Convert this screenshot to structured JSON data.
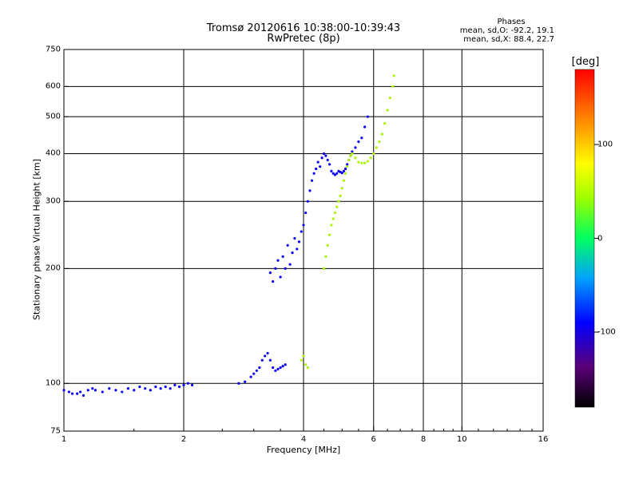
{
  "chart_data": {
    "type": "scatter",
    "title": "Tromsø 20120616 10:38:00-10:39:43",
    "subtitle": "RwPretec (8p)",
    "xlabel": "Frequency [MHz]",
    "ylabel": "Stationary phase Virtual Height [km]",
    "x_scale": "log",
    "y_scale": "log",
    "xlim": [
      1,
      16
    ],
    "ylim": [
      75,
      750
    ],
    "x_ticks": [
      1,
      2,
      4,
      6,
      8,
      10,
      16
    ],
    "y_ticks": [
      75,
      100,
      200,
      300,
      400,
      500,
      600,
      750
    ],
    "x_gridlines": [
      2,
      4,
      6,
      8,
      10
    ],
    "y_gridlines": [
      100,
      200,
      300,
      400,
      500,
      600
    ],
    "phases_box": {
      "heading": "Phases",
      "o_stats": "mean, sd,O: -92.2, 19.1",
      "x_stats": "mean, sd,X:  88.4, 22.7"
    },
    "colorbar": {
      "label": "[deg]",
      "range": [
        -180,
        180
      ],
      "ticks": [
        100,
        0,
        -100
      ]
    },
    "series": [
      {
        "name": "O-mode trace (blue, phase ~ -90 deg)",
        "phase_deg": -95,
        "points": [
          [
            1.0,
            96
          ],
          [
            1.03,
            95
          ],
          [
            1.05,
            94
          ],
          [
            1.08,
            94
          ],
          [
            1.1,
            95
          ],
          [
            1.12,
            93
          ],
          [
            1.15,
            96
          ],
          [
            1.18,
            97
          ],
          [
            1.2,
            96
          ],
          [
            1.25,
            95
          ],
          [
            1.3,
            97
          ],
          [
            1.35,
            96
          ],
          [
            1.4,
            95
          ],
          [
            1.45,
            97
          ],
          [
            1.5,
            96
          ],
          [
            1.55,
            98
          ],
          [
            1.6,
            97
          ],
          [
            1.65,
            96
          ],
          [
            1.7,
            98
          ],
          [
            1.75,
            97
          ],
          [
            1.8,
            98
          ],
          [
            1.85,
            97
          ],
          [
            1.9,
            99
          ],
          [
            1.95,
            98
          ],
          [
            2.0,
            99
          ],
          [
            2.05,
            100
          ],
          [
            2.1,
            99
          ],
          [
            2.75,
            100
          ],
          [
            2.85,
            101
          ],
          [
            2.95,
            104
          ],
          [
            3.0,
            106
          ],
          [
            3.05,
            108
          ],
          [
            3.1,
            110
          ],
          [
            3.15,
            115
          ],
          [
            3.2,
            118
          ],
          [
            3.25,
            120
          ],
          [
            3.3,
            115
          ],
          [
            3.35,
            110
          ],
          [
            3.4,
            108
          ],
          [
            3.45,
            109
          ],
          [
            3.5,
            110
          ],
          [
            3.55,
            111
          ],
          [
            3.6,
            112
          ],
          [
            3.3,
            195
          ],
          [
            3.35,
            185
          ],
          [
            3.4,
            200
          ],
          [
            3.45,
            210
          ],
          [
            3.5,
            190
          ],
          [
            3.55,
            215
          ],
          [
            3.6,
            200
          ],
          [
            3.65,
            230
          ],
          [
            3.7,
            205
          ],
          [
            3.75,
            220
          ],
          [
            3.8,
            240
          ],
          [
            3.85,
            225
          ],
          [
            3.9,
            235
          ],
          [
            3.95,
            250
          ],
          [
            4.0,
            260
          ],
          [
            4.05,
            280
          ],
          [
            4.1,
            300
          ],
          [
            4.15,
            320
          ],
          [
            4.2,
            340
          ],
          [
            4.25,
            355
          ],
          [
            4.3,
            365
          ],
          [
            4.35,
            380
          ],
          [
            4.4,
            370
          ],
          [
            4.45,
            390
          ],
          [
            4.5,
            400
          ],
          [
            4.55,
            395
          ],
          [
            4.6,
            385
          ],
          [
            4.65,
            375
          ],
          [
            4.7,
            360
          ],
          [
            4.75,
            355
          ],
          [
            4.8,
            352
          ],
          [
            4.85,
            355
          ],
          [
            4.9,
            360
          ],
          [
            4.95,
            358
          ],
          [
            5.0,
            356
          ],
          [
            5.05,
            360
          ],
          [
            5.1,
            365
          ],
          [
            5.15,
            375
          ],
          [
            5.2,
            385
          ],
          [
            5.25,
            395
          ],
          [
            5.3,
            405
          ],
          [
            5.4,
            415
          ],
          [
            5.5,
            430
          ],
          [
            5.6,
            440
          ],
          [
            5.7,
            470
          ],
          [
            5.8,
            500
          ]
        ]
      },
      {
        "name": "X-mode trace (yellow, phase ~ +90 deg)",
        "phase_deg": 92,
        "points": [
          [
            3.95,
            115
          ],
          [
            4.0,
            118
          ],
          [
            4.05,
            112
          ],
          [
            4.1,
            110
          ],
          [
            4.5,
            200
          ],
          [
            4.55,
            215
          ],
          [
            4.6,
            230
          ],
          [
            4.65,
            245
          ],
          [
            4.7,
            260
          ],
          [
            4.75,
            270
          ],
          [
            4.8,
            280
          ],
          [
            4.85,
            290
          ],
          [
            4.9,
            300
          ],
          [
            4.95,
            310
          ],
          [
            5.0,
            325
          ],
          [
            5.05,
            340
          ],
          [
            5.1,
            355
          ],
          [
            5.15,
            370
          ],
          [
            5.2,
            385
          ],
          [
            5.25,
            395
          ],
          [
            5.3,
            400
          ],
          [
            5.4,
            390
          ],
          [
            5.5,
            380
          ],
          [
            5.6,
            378
          ],
          [
            5.7,
            378
          ],
          [
            5.8,
            382
          ],
          [
            5.9,
            390
          ],
          [
            6.0,
            400
          ],
          [
            6.1,
            415
          ],
          [
            6.2,
            430
          ],
          [
            6.3,
            450
          ],
          [
            6.4,
            480
          ],
          [
            6.5,
            520
          ],
          [
            6.6,
            560
          ],
          [
            6.7,
            600
          ],
          [
            6.75,
            640
          ]
        ]
      }
    ]
  }
}
